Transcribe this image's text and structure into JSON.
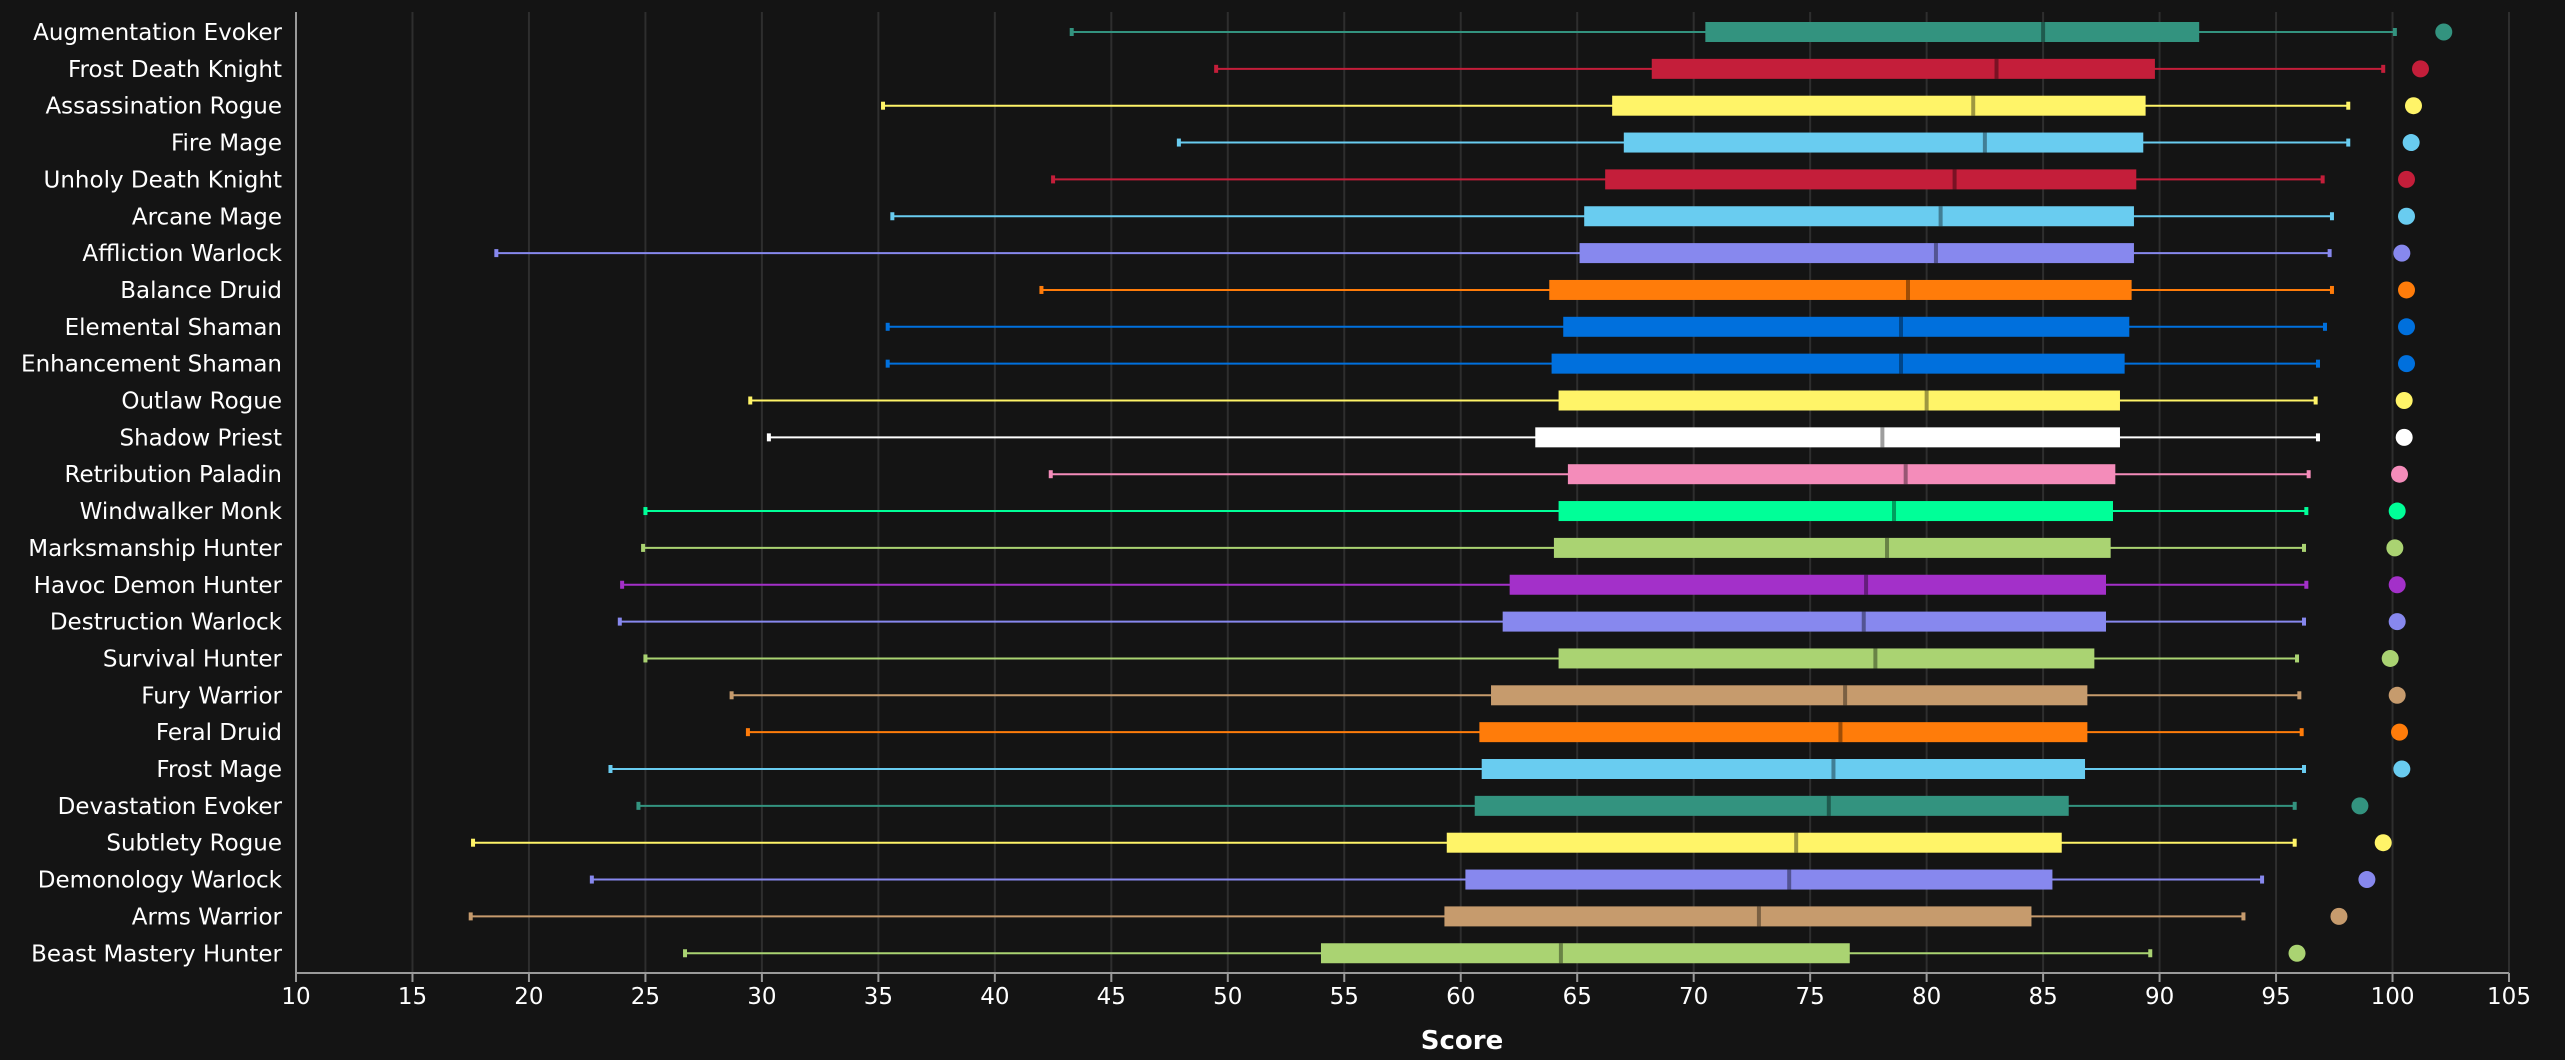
{
  "chart_data": {
    "type": "boxplot",
    "xlabel": "Score",
    "xlim": [
      10,
      105
    ],
    "x_ticks": [
      10,
      15,
      20,
      25,
      30,
      35,
      40,
      45,
      50,
      55,
      60,
      65,
      70,
      75,
      80,
      85,
      90,
      95,
      100,
      105
    ],
    "grid": "vertical",
    "series": [
      {
        "name": "Augmentation Evoker",
        "color": "#33937F",
        "min": 43.3,
        "q1": 70.5,
        "median": 85.0,
        "q3": 91.7,
        "max": 100.1,
        "max_point": 102.2
      },
      {
        "name": "Frost Death Knight",
        "color": "#C41E3A",
        "min": 49.5,
        "q1": 68.2,
        "median": 83.0,
        "q3": 89.8,
        "max": 99.6,
        "max_point": 101.2
      },
      {
        "name": "Assassination Rogue",
        "color": "#FFF468",
        "min": 35.2,
        "q1": 66.5,
        "median": 82.0,
        "q3": 89.4,
        "max": 98.1,
        "max_point": 100.9
      },
      {
        "name": "Fire Mage",
        "color": "#69CCF0",
        "min": 47.9,
        "q1": 67.0,
        "median": 82.5,
        "q3": 89.3,
        "max": 98.1,
        "max_point": 100.8
      },
      {
        "name": "Unholy Death Knight",
        "color": "#C41E3A",
        "min": 42.5,
        "q1": 66.2,
        "median": 81.2,
        "q3": 89.0,
        "max": 97.0,
        "max_point": 100.6
      },
      {
        "name": "Arcane Mage",
        "color": "#69CCF0",
        "min": 35.6,
        "q1": 65.3,
        "median": 80.6,
        "q3": 88.9,
        "max": 97.4,
        "max_point": 100.6
      },
      {
        "name": "Affliction Warlock",
        "color": "#8788EE",
        "min": 18.6,
        "q1": 65.1,
        "median": 80.4,
        "q3": 88.9,
        "max": 97.3,
        "max_point": 100.4
      },
      {
        "name": "Balance Druid",
        "color": "#FF7C0A",
        "min": 42.0,
        "q1": 63.8,
        "median": 79.2,
        "q3": 88.8,
        "max": 97.4,
        "max_point": 100.6
      },
      {
        "name": "Elemental Shaman",
        "color": "#0070DD",
        "min": 35.4,
        "q1": 64.4,
        "median": 78.9,
        "q3": 88.7,
        "max": 97.1,
        "max_point": 100.6
      },
      {
        "name": "Enhancement Shaman",
        "color": "#0070DD",
        "min": 35.4,
        "q1": 63.9,
        "median": 78.9,
        "q3": 88.5,
        "max": 96.8,
        "max_point": 100.6
      },
      {
        "name": "Outlaw Rogue",
        "color": "#FFF468",
        "min": 29.5,
        "q1": 64.2,
        "median": 80.0,
        "q3": 88.3,
        "max": 96.7,
        "max_point": 100.5
      },
      {
        "name": "Shadow Priest",
        "color": "#FFFFFF",
        "min": 30.3,
        "q1": 63.2,
        "median": 78.1,
        "q3": 88.3,
        "max": 96.8,
        "max_point": 100.5
      },
      {
        "name": "Retribution Paladin",
        "color": "#F48CBA",
        "min": 42.4,
        "q1": 64.6,
        "median": 79.1,
        "q3": 88.1,
        "max": 96.4,
        "max_point": 100.3
      },
      {
        "name": "Windwalker Monk",
        "color": "#00FF98",
        "min": 25.0,
        "q1": 64.2,
        "median": 78.6,
        "q3": 88.0,
        "max": 96.3,
        "max_point": 100.2
      },
      {
        "name": "Marksmanship Hunter",
        "color": "#AAD372",
        "min": 24.9,
        "q1": 64.0,
        "median": 78.3,
        "q3": 87.9,
        "max": 96.2,
        "max_point": 100.1
      },
      {
        "name": "Havoc Demon Hunter",
        "color": "#A330C9",
        "min": 24.0,
        "q1": 62.1,
        "median": 77.4,
        "q3": 87.7,
        "max": 96.3,
        "max_point": 100.2
      },
      {
        "name": "Destruction Warlock",
        "color": "#8788EE",
        "min": 23.9,
        "q1": 61.8,
        "median": 77.3,
        "q3": 87.7,
        "max": 96.2,
        "max_point": 100.2
      },
      {
        "name": "Survival Hunter",
        "color": "#AAD372",
        "min": 25.0,
        "q1": 64.2,
        "median": 77.8,
        "q3": 87.2,
        "max": 95.9,
        "max_point": 99.9
      },
      {
        "name": "Fury Warrior",
        "color": "#C69B6D",
        "min": 28.7,
        "q1": 61.3,
        "median": 76.5,
        "q3": 86.9,
        "max": 96.0,
        "max_point": 100.2
      },
      {
        "name": "Feral Druid",
        "color": "#FF7C0A",
        "min": 29.4,
        "q1": 60.8,
        "median": 76.3,
        "q3": 86.9,
        "max": 96.1,
        "max_point": 100.3
      },
      {
        "name": "Frost Mage",
        "color": "#69CCF0",
        "min": 23.5,
        "q1": 60.9,
        "median": 76.0,
        "q3": 86.8,
        "max": 96.2,
        "max_point": 100.4
      },
      {
        "name": "Devastation Evoker",
        "color": "#33937F",
        "min": 24.7,
        "q1": 60.6,
        "median": 75.8,
        "q3": 86.1,
        "max": 95.8,
        "max_point": 98.6
      },
      {
        "name": "Subtlety Rogue",
        "color": "#FFF468",
        "min": 17.6,
        "q1": 59.4,
        "median": 74.4,
        "q3": 85.8,
        "max": 95.8,
        "max_point": 99.6
      },
      {
        "name": "Demonology Warlock",
        "color": "#8788EE",
        "min": 22.7,
        "q1": 60.2,
        "median": 74.1,
        "q3": 85.4,
        "max": 94.4,
        "max_point": 98.9
      },
      {
        "name": "Arms Warrior",
        "color": "#C69B6D",
        "min": 17.5,
        "q1": 59.3,
        "median": 72.8,
        "q3": 84.5,
        "max": 93.6,
        "max_point": 97.7
      },
      {
        "name": "Beast Mastery Hunter",
        "color": "#AAD372",
        "min": 26.7,
        "q1": 54.0,
        "median": 64.3,
        "q3": 76.7,
        "max": 89.6,
        "max_point": 95.9
      }
    ]
  }
}
